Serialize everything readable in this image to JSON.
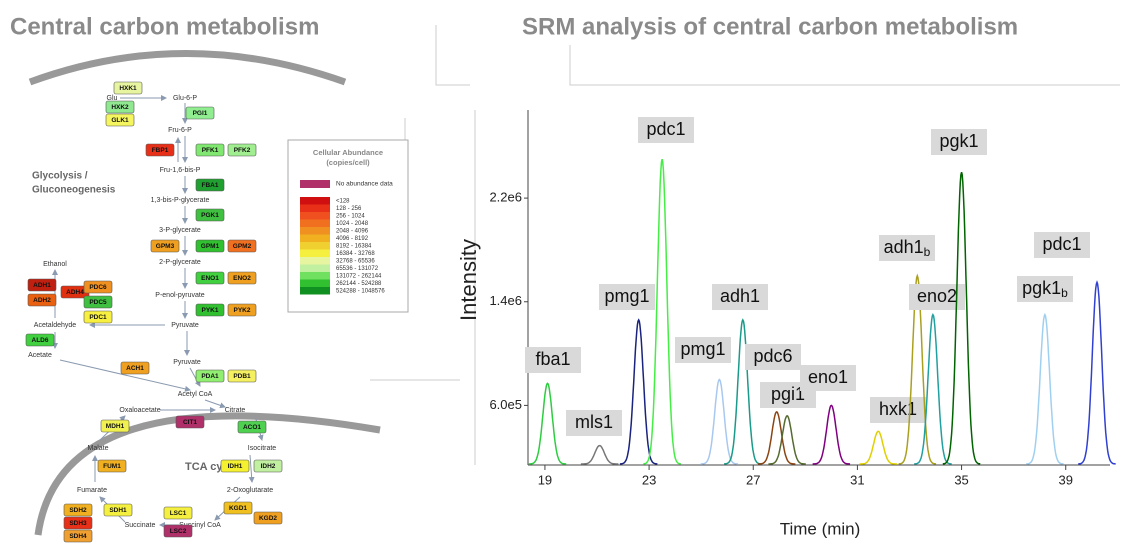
{
  "left_title": "Central carbon  metabolism",
  "right_title": "SRM analysis of central carbon metabolism",
  "pathway": {
    "sections": [
      "Glycolysis /",
      "Gluconeogenesis",
      "TCA cycle"
    ],
    "metabolites": [
      "Glu",
      "Glu-6-P",
      "Fru-6-P",
      "Fru-1,6-bis-P",
      "1,3-bis-P-glycerate",
      "3-P-glycerate",
      "2-P-glycerate",
      "P-enol-pyruvate",
      "Pyruvate",
      "Ethanol",
      "Acetaldehyde",
      "Acetate",
      "Pyruvate",
      "Acetyl CoA",
      "Oxaloacetate",
      "Citrate",
      "Malate",
      "Isocitrate",
      "Fumarate",
      "2-Oxoglutarate",
      "Succinate",
      "Succinyl CoA"
    ],
    "enzymes": [
      {
        "label": "HXK1",
        "color": "#e8f5a0"
      },
      {
        "label": "HXK2",
        "color": "#90e890"
      },
      {
        "label": "GLK1",
        "color": "#f5f560"
      },
      {
        "label": "PGI1",
        "color": "#90ee90"
      },
      {
        "label": "FBP1",
        "color": "#e83018"
      },
      {
        "label": "PFK1",
        "color": "#80e870"
      },
      {
        "label": "PFK2",
        "color": "#a0ee90"
      },
      {
        "label": "FBA1",
        "color": "#20a030"
      },
      {
        "label": "PGK1",
        "color": "#40c040"
      },
      {
        "label": "GPM3",
        "color": "#f0a020"
      },
      {
        "label": "GPM1",
        "color": "#30c030"
      },
      {
        "label": "GPM2",
        "color": "#f07020"
      },
      {
        "label": "ENO1",
        "color": "#40d040"
      },
      {
        "label": "ENO2",
        "color": "#f0a020"
      },
      {
        "label": "PYK1",
        "color": "#30c030"
      },
      {
        "label": "PYK2",
        "color": "#f0a020"
      },
      {
        "label": "ADH1",
        "color": "#c02010"
      },
      {
        "label": "ADH2",
        "color": "#e86010"
      },
      {
        "label": "ADH4",
        "color": "#e03010"
      },
      {
        "label": "PDC6",
        "color": "#f09020"
      },
      {
        "label": "PDC5",
        "color": "#40c040"
      },
      {
        "label": "PDC1",
        "color": "#f8f040"
      },
      {
        "label": "ALD6",
        "color": "#40d040"
      },
      {
        "label": "ACH1",
        "color": "#f0a020"
      },
      {
        "label": "PDA1",
        "color": "#90ee70"
      },
      {
        "label": "PDB1",
        "color": "#f5f060"
      },
      {
        "label": "CIT1",
        "color": "#b0306a"
      },
      {
        "label": "MDH1",
        "color": "#f0f050"
      },
      {
        "label": "ACO1",
        "color": "#50d050"
      },
      {
        "label": "FUM1",
        "color": "#f0b020"
      },
      {
        "label": "IDH1",
        "color": "#f5f030"
      },
      {
        "label": "IDH2",
        "color": "#c0f0a0"
      },
      {
        "label": "SDH1",
        "color": "#f5f040"
      },
      {
        "label": "SDH2",
        "color": "#f0b020"
      },
      {
        "label": "SDH3",
        "color": "#e83018"
      },
      {
        "label": "SDH4",
        "color": "#f0a030"
      },
      {
        "label": "LSC1",
        "color": "#f5f040"
      },
      {
        "label": "LSC2",
        "color": "#b0306a"
      },
      {
        "label": "KGD1",
        "color": "#f0c020"
      },
      {
        "label": "KGD2",
        "color": "#f0a020"
      }
    ]
  },
  "legend": {
    "title": [
      "Cellular Abundance",
      "(copies/cell)"
    ],
    "no_data": {
      "label": "No abundance data",
      "color": "#b0306a"
    },
    "bins": [
      {
        "label": "<128",
        "color": "#d01010"
      },
      {
        "label": "128 - 256",
        "color": "#e83018"
      },
      {
        "label": "256 - 1024",
        "color": "#f05020"
      },
      {
        "label": "1024 - 2048",
        "color": "#f07020"
      },
      {
        "label": "2048 - 4096",
        "color": "#f09020"
      },
      {
        "label": "4096 - 8192",
        "color": "#f0b020"
      },
      {
        "label": "8192 - 16384",
        "color": "#f0d030"
      },
      {
        "label": "16384 - 32768",
        "color": "#f5f040"
      },
      {
        "label": "32768 - 65536",
        "color": "#e8f5a0"
      },
      {
        "label": "65536 - 131072",
        "color": "#c0f0a0"
      },
      {
        "label": "131072 - 262144",
        "color": "#70e060"
      },
      {
        "label": "262144 - 524288",
        "color": "#30c030"
      },
      {
        "label": "524288 - 1048576",
        "color": "#109020"
      }
    ]
  },
  "chromatogram": {
    "y_label": "Intensity",
    "x_label": "Time (min)",
    "xlim": [
      18.35,
      40.7
    ],
    "ylim": [
      140000,
      2880000
    ],
    "xticks": [
      19,
      23,
      27,
      31,
      35,
      39
    ],
    "yticks": [
      {
        "value": 600000,
        "label": "6.0e5"
      },
      {
        "value": 1400000,
        "label": "1.4e6"
      },
      {
        "value": 2200000,
        "label": "2.2e6"
      }
    ],
    "peaks": [
      {
        "label": "fba1",
        "time": 19.1,
        "height": 770000,
        "color": "#2ecc40"
      },
      {
        "label": "mls1",
        "time": 21.1,
        "height": 290000,
        "color": "#777777"
      },
      {
        "label": "pmg1",
        "time": 22.6,
        "height": 1260000,
        "color": "#1a237e"
      },
      {
        "label": "pdc1",
        "time": 23.5,
        "height": 2500000,
        "color": "#44ee44"
      },
      {
        "label": "pmg1",
        "time": 25.7,
        "height": 800000,
        "color": "#a8c8f0"
      },
      {
        "label": "adh1",
        "time": 26.6,
        "height": 1260000,
        "color": "#1a9a8a"
      },
      {
        "label": "pdc6",
        "time": 27.9,
        "height": 550000,
        "color": "#8b4513"
      },
      {
        "label": "pgi1",
        "time": 28.3,
        "height": 520000,
        "color": "#556b2f"
      },
      {
        "label": "eno1",
        "time": 30.0,
        "height": 600000,
        "color": "#800080"
      },
      {
        "label": "hxk1",
        "time": 31.8,
        "height": 400000,
        "color": "#e0d000"
      },
      {
        "label": "adh1",
        "sub": "b",
        "time": 33.3,
        "height": 1600000,
        "color": "#aaa020"
      },
      {
        "label": "eno2",
        "time": 33.9,
        "height": 1300000,
        "color": "#20a0a0"
      },
      {
        "label": "pgk1",
        "time": 35.0,
        "height": 2400000,
        "color": "#006400"
      },
      {
        "label": "pgk1",
        "sub": "b",
        "time": 38.2,
        "height": 1300000,
        "color": "#a0d0f0"
      },
      {
        "label": "pdc1",
        "time": 40.2,
        "height": 1550000,
        "color": "#3040d0"
      }
    ]
  }
}
